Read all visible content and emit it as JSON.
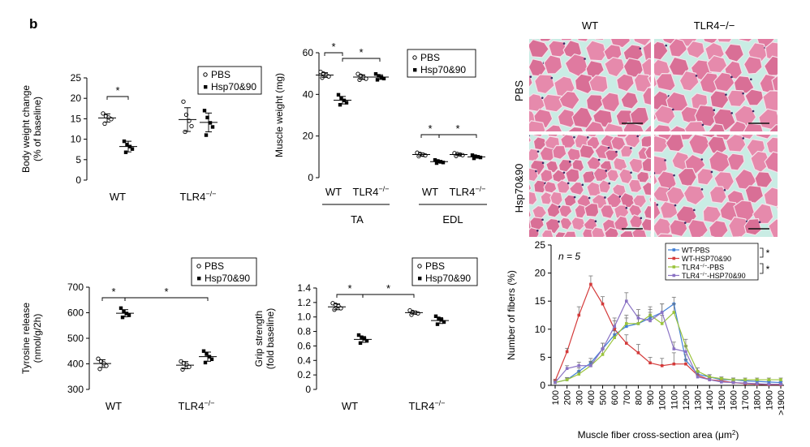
{
  "figure": {
    "panel_letter": "b"
  },
  "colors": {
    "hist_pink": "#e07aa0",
    "hist_bg": "#f7d3df",
    "connective": "#c9ece4",
    "wt_pbs": "#3f7fd6",
    "wt_hsp": "#d43a3a",
    "tlr4_pbs": "#9bc43c",
    "tlr4_hsp": "#8a72c4"
  },
  "histology": {
    "col_labels": [
      "WT",
      "TLR4−/−"
    ],
    "row_labels": [
      "PBS",
      "Hsp70&90"
    ]
  },
  "chart_data": [
    {
      "id": "body-weight",
      "type": "scatter",
      "ylabel_lines": [
        "Body weight change",
        "(% of baseline)"
      ],
      "ylim": [
        0,
        25
      ],
      "yticks": [
        0,
        5,
        10,
        15,
        20,
        25
      ],
      "group_labels": [
        "WT",
        "TLR4−/−"
      ],
      "legend": [
        "PBS",
        "Hsp70&90"
      ],
      "series": [
        {
          "group": 0,
          "treatment": "PBS",
          "points": [
            16.3,
            15.6,
            15.3,
            14.9,
            13.8
          ],
          "mean": 15.2,
          "sd": 1.0
        },
        {
          "group": 0,
          "treatment": "Hsp70&90",
          "points": [
            9.5,
            8.7,
            8.2,
            7.6,
            6.8
          ],
          "mean": 8.2,
          "sd": 1.3
        },
        {
          "group": 1,
          "treatment": "PBS",
          "points": [
            19.2,
            16.0,
            14.5,
            13.2,
            11.8
          ],
          "mean": 14.8,
          "sd": 2.9
        },
        {
          "group": 1,
          "treatment": "Hsp70&90",
          "points": [
            17.0,
            15.3,
            14.0,
            13.0,
            11.0
          ],
          "mean": 14.1,
          "sd": 2.3
        }
      ],
      "significance": [
        {
          "from": 0,
          "to": 1,
          "label": "*"
        }
      ]
    },
    {
      "id": "muscle-weight",
      "type": "scatter",
      "ylabel": "Muscle weight (mg)",
      "ylim": [
        0,
        60
      ],
      "yticks": [
        0,
        20,
        40,
        60
      ],
      "group_labels": [
        "WT",
        "TLR4−/−",
        "WT",
        "TLR4−/−"
      ],
      "muscle_labels": [
        "TA",
        "EDL"
      ],
      "legend": [
        "PBS",
        "Hsp70&90"
      ],
      "series": [
        {
          "group": 0,
          "treatment": "PBS",
          "points": [
            50.8,
            50.0,
            49.3,
            48.6,
            48.0
          ],
          "mean": 49.3,
          "sd": 1.1
        },
        {
          "group": 0,
          "treatment": "Hsp70&90",
          "points": [
            39.8,
            38.2,
            37.1,
            36.0,
            35.0
          ],
          "mean": 37.2,
          "sd": 1.8
        },
        {
          "group": 1,
          "treatment": "PBS",
          "points": [
            49.8,
            49.0,
            48.2,
            47.5,
            47.0
          ],
          "mean": 48.3,
          "sd": 1.1
        },
        {
          "group": 1,
          "treatment": "Hsp70&90",
          "points": [
            49.8,
            48.9,
            48.2,
            47.6,
            47.0
          ],
          "mean": 48.3,
          "sd": 1.1
        },
        {
          "group": 2,
          "treatment": "PBS",
          "points": [
            12.0,
            11.5,
            11.0,
            10.7,
            10.3
          ],
          "mean": 11.1,
          "sd": 0.7
        },
        {
          "group": 2,
          "treatment": "Hsp70&90",
          "points": [
            8.5,
            8.0,
            7.6,
            7.3,
            7.0
          ],
          "mean": 7.7,
          "sd": 0.6
        },
        {
          "group": 3,
          "treatment": "PBS",
          "points": [
            11.8,
            11.4,
            11.1,
            10.8,
            10.4
          ],
          "mean": 11.1,
          "sd": 0.5
        },
        {
          "group": 3,
          "treatment": "Hsp70&90",
          "points": [
            10.8,
            10.3,
            10.0,
            9.7,
            9.3
          ],
          "mean": 10.0,
          "sd": 0.6
        }
      ],
      "significance": [
        {
          "from": 0,
          "to": 1,
          "label": "*"
        },
        {
          "from": 1,
          "to": 3,
          "label": "*"
        },
        {
          "from": 4,
          "to": 5,
          "label": "*"
        },
        {
          "from": 5,
          "to": 7,
          "label": "*"
        }
      ]
    },
    {
      "id": "tyrosine",
      "type": "scatter",
      "ylabel_lines": [
        "Tyrosine release",
        "(nmol/g/2h)"
      ],
      "ylim": [
        300,
        700
      ],
      "yticks": [
        300,
        400,
        500,
        600,
        700
      ],
      "group_labels": [
        "WT",
        "TLR4−/−"
      ],
      "legend": [
        "PBS",
        "Hsp70&90"
      ],
      "series": [
        {
          "group": 0,
          "treatment": "PBS",
          "points": [
            420,
            410,
            402,
            392,
            380
          ],
          "mean": 401,
          "sd": 15
        },
        {
          "group": 0,
          "treatment": "Hsp70&90",
          "points": [
            618,
            605,
            597,
            590,
            582
          ],
          "mean": 598,
          "sd": 14
        },
        {
          "group": 1,
          "treatment": "PBS",
          "points": [
            410,
            402,
            396,
            388,
            378
          ],
          "mean": 395,
          "sd": 14
        },
        {
          "group": 1,
          "treatment": "Hsp70&90",
          "points": [
            450,
            438,
            428,
            418,
            405
          ],
          "mean": 428,
          "sd": 18
        }
      ],
      "significance": [
        {
          "from": 0,
          "to": 1,
          "label": "*"
        },
        {
          "from": 1,
          "to": 3,
          "label": "*"
        }
      ]
    },
    {
      "id": "grip",
      "type": "scatter",
      "ylabel_lines": [
        "Grip strength",
        "(fold baseline)"
      ],
      "ylim": [
        0,
        1.4
      ],
      "yticks": [
        0,
        0.2,
        0.4,
        0.6,
        0.8,
        1.0,
        1.2,
        1.4
      ],
      "ytick_labels": [
        "0",
        "0.2",
        "0.4",
        "0.6",
        "0.8",
        "1.0",
        "1.2",
        "1.4"
      ],
      "group_labels": [
        "WT",
        "TLR4−/−"
      ],
      "legend": [
        "PBS",
        "Hsp70&90"
      ],
      "series": [
        {
          "group": 0,
          "treatment": "PBS",
          "points": [
            1.19,
            1.17,
            1.15,
            1.12,
            1.1
          ],
          "mean": 1.14,
          "sd": 0.04
        },
        {
          "group": 0,
          "treatment": "Hsp70&90",
          "points": [
            0.75,
            0.72,
            0.7,
            0.67,
            0.64
          ],
          "mean": 0.69,
          "sd": 0.04
        },
        {
          "group": 1,
          "treatment": "PBS",
          "points": [
            1.09,
            1.07,
            1.06,
            1.05,
            1.03
          ],
          "mean": 1.06,
          "sd": 0.02
        },
        {
          "group": 1,
          "treatment": "Hsp70&90",
          "points": [
            1.01,
            0.98,
            0.96,
            0.93,
            0.9
          ],
          "mean": 0.95,
          "sd": 0.04
        }
      ],
      "significance": [
        {
          "from": 0,
          "to": 1,
          "label": "*"
        },
        {
          "from": 1,
          "to": 2,
          "label": "*"
        }
      ]
    },
    {
      "id": "fiber-dist",
      "type": "line",
      "annotation": "n = 5",
      "ylabel": "Number of fibers (%)",
      "xlabel": "Muscle fiber cross-section area (μm2)",
      "ylim": [
        0,
        25
      ],
      "yticks": [
        0,
        5,
        10,
        15,
        20,
        25
      ],
      "categories": [
        "100",
        "200",
        "300",
        "400",
        "500",
        "600",
        "700",
        "800",
        "900",
        "1000",
        "1100",
        "1200",
        "1300",
        "1400",
        "1500",
        "1600",
        "1700",
        "1800",
        "1900",
        ">1900"
      ],
      "series": [
        {
          "name": "WT-PBS",
          "color_key": "wt_pbs",
          "values": [
            0.5,
            1.0,
            2.5,
            4.0,
            6.5,
            9.0,
            10.5,
            11.0,
            12.0,
            13.0,
            14.5,
            4.5,
            2.0,
            1.5,
            1.0,
            1.0,
            0.8,
            0.7,
            0.6,
            0.5
          ],
          "err": [
            0.3,
            0.4,
            0.6,
            0.8,
            1.0,
            1.2,
            1.5,
            1.5,
            1.5,
            1.5,
            1.2,
            1.0,
            0.5,
            0.4,
            0.3,
            0.3,
            0.2,
            0.2,
            0.2,
            0.2
          ]
        },
        {
          "name": "WT-HSP70&90",
          "color_key": "wt_hsp",
          "values": [
            0.8,
            6.0,
            12.5,
            18.0,
            14.5,
            10.0,
            7.5,
            5.8,
            4.0,
            3.5,
            3.8,
            3.8,
            1.8,
            1.0,
            0.8,
            0.5,
            0.3,
            0.2,
            0.1,
            0.1
          ],
          "err": [
            0.3,
            0.6,
            1.5,
            1.5,
            1.3,
            1.5,
            1.5,
            1.5,
            1.0,
            1.3,
            2.0,
            0.8,
            0.5,
            0.3,
            0.2,
            0.2,
            0.1,
            0.1,
            0.1,
            0.1
          ]
        },
        {
          "name": "TLR4−/−-PBS",
          "color_key": "tlr4_pbs",
          "values": [
            0.5,
            1.0,
            2.0,
            3.5,
            5.5,
            8.5,
            11.0,
            11.0,
            12.5,
            11.0,
            13.0,
            7.0,
            2.5,
            1.5,
            1.2,
            1.0,
            1.0,
            1.0,
            1.0,
            1.0
          ],
          "err": [
            0.3,
            0.3,
            0.5,
            0.8,
            1.0,
            1.2,
            1.5,
            1.5,
            1.5,
            1.5,
            1.5,
            1.2,
            0.6,
            0.4,
            0.3,
            0.3,
            0.3,
            0.3,
            0.3,
            0.3
          ]
        },
        {
          "name": "TLR4−/−-HSP70&90",
          "color_key": "tlr4_hsp",
          "values": [
            0.5,
            3.0,
            3.5,
            3.5,
            6.5,
            10.5,
            15.0,
            12.0,
            11.5,
            13.0,
            6.5,
            6.0,
            1.5,
            1.0,
            0.6,
            0.5,
            0.4,
            0.3,
            0.2,
            0.2
          ],
          "err": [
            0.3,
            0.5,
            0.6,
            0.6,
            1.0,
            1.5,
            1.5,
            1.5,
            1.5,
            1.5,
            1.2,
            1.0,
            0.4,
            0.3,
            0.2,
            0.2,
            0.1,
            0.1,
            0.1,
            0.1
          ]
        }
      ],
      "significance_label": "*"
    }
  ]
}
